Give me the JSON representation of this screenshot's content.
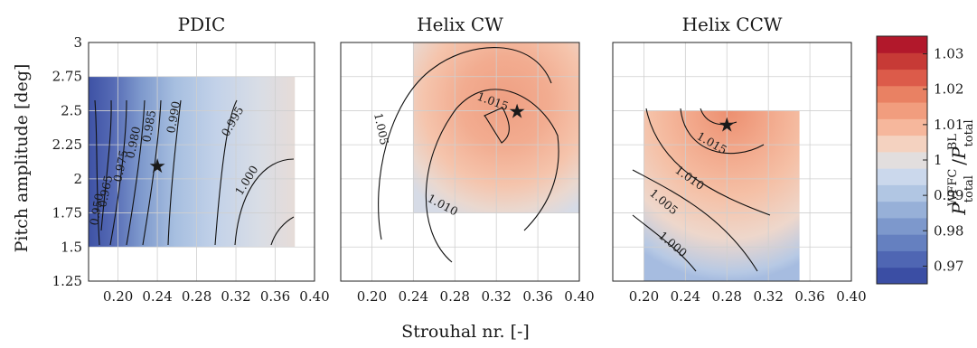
{
  "chart_data": {
    "type": "heatmap",
    "xlabel": "Strouhal nr. [-]",
    "ylabel": "Pitch amplitude [deg]",
    "x_ticks": [
      "0.20",
      "0.24",
      "0.28",
      "0.32",
      "0.36",
      "0.40"
    ],
    "y_ticks": [
      "1.25",
      "1.5",
      "1.75",
      "2",
      "2.25",
      "2.5",
      "2.75",
      "3"
    ],
    "xlim": [
      0.17,
      0.4
    ],
    "ylim": [
      1.25,
      3.0
    ],
    "grid": true,
    "colorbar": {
      "label_base": "P",
      "label_sup1": "WFFC",
      "label_sub1": "total",
      "label_sup2": "BL",
      "label_sub2": "total",
      "range": [
        0.965,
        1.035
      ],
      "ticks": [
        "0.97",
        "0.98",
        "0.99",
        "1",
        "1.01",
        "1.02",
        "1.03"
      ],
      "colors": [
        "#3b4ea4",
        "#4f66b3",
        "#6580c0",
        "#7d98cc",
        "#97b0d8",
        "#b1c6e3",
        "#cbd8ec",
        "#e2dede",
        "#f4d2c0",
        "#f6b79c",
        "#f19d7e",
        "#e98163",
        "#dc5b4a",
        "#c73a36",
        "#b2182b"
      ]
    },
    "panels": [
      {
        "title": "PDIC",
        "x_range": [
          0.17,
          0.38
        ],
        "y_range": [
          1.5,
          2.75
        ],
        "optimum": {
          "x": 0.24,
          "y": 2.1
        },
        "contour_labels": [
          "0.950",
          "0.965",
          "0.975",
          "0.980",
          "0.985",
          "0.990",
          "0.995",
          "1.000"
        ]
      },
      {
        "title": "Helix CW",
        "x_range": [
          0.24,
          0.4
        ],
        "y_range": [
          1.75,
          3.0
        ],
        "optimum": {
          "x": 0.34,
          "y": 2.5
        },
        "contour_labels": [
          "1.005",
          "1.010",
          "1.015"
        ]
      },
      {
        "title": "Helix CCW",
        "x_range": [
          0.2,
          0.35
        ],
        "y_range": [
          1.25,
          2.5
        ],
        "optimum": {
          "x": 0.28,
          "y": 2.4
        },
        "contour_labels": [
          "1.000",
          "1.005",
          "1.010",
          "1.015"
        ]
      }
    ]
  }
}
